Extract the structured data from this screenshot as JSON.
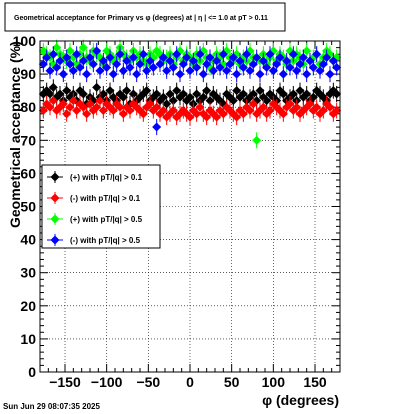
{
  "chart_data": {
    "type": "scatter",
    "title": "Geometrical acceptance for Primary vs φ (degrees) at |  η  | <= 1.0 at pT > 0.11",
    "xlabel": "φ (degrees)",
    "ylabel": "Geometrical acceptance (%)",
    "xlim": [
      -180,
      180
    ],
    "ylim": [
      0,
      100
    ],
    "x_ticks": [
      -150,
      -100,
      -50,
      0,
      50,
      100,
      150
    ],
    "x_tick_labels": [
      "−150",
      "−100",
      "−50",
      "0",
      "50",
      "100",
      "150"
    ],
    "y_ticks": [
      0,
      10,
      20,
      30,
      40,
      50,
      60,
      70,
      80,
      90,
      100
    ],
    "y_tick_labels": [
      "0",
      "10",
      "20",
      "30",
      "40",
      "50",
      "60",
      "70",
      "80",
      "90",
      "100"
    ],
    "grid": true,
    "legend_position": "left-middle",
    "x": [
      -176,
      -172,
      -168,
      -164,
      -160,
      -156,
      -152,
      -148,
      -144,
      -140,
      -136,
      -132,
      -128,
      -124,
      -120,
      -116,
      -112,
      -108,
      -104,
      -100,
      -96,
      -92,
      -88,
      -84,
      -80,
      -76,
      -72,
      -68,
      -64,
      -60,
      -56,
      -52,
      -48,
      -44,
      -40,
      -36,
      -32,
      -28,
      -24,
      -20,
      -16,
      -12,
      -8,
      -4,
      0,
      4,
      8,
      12,
      16,
      20,
      24,
      28,
      32,
      36,
      40,
      44,
      48,
      52,
      56,
      60,
      64,
      68,
      72,
      76,
      80,
      84,
      88,
      92,
      96,
      100,
      104,
      108,
      112,
      116,
      120,
      124,
      128,
      132,
      136,
      140,
      144,
      148,
      152,
      156,
      160,
      164,
      168,
      172,
      176
    ],
    "series": [
      {
        "name": "(+) with pT/|q| > 0.1",
        "color": "#000000",
        "values": [
          84,
          85,
          84,
          86,
          83,
          84,
          82,
          85,
          83,
          84,
          82,
          85,
          84,
          81,
          83,
          82,
          86,
          83,
          84,
          82,
          85,
          83,
          82,
          84,
          83,
          85,
          81,
          84,
          82,
          83,
          84,
          85,
          82,
          83,
          84,
          82,
          83,
          81,
          84,
          82,
          85,
          83,
          84,
          82,
          83,
          81,
          84,
          82,
          83,
          85,
          82,
          84,
          83,
          82,
          81,
          84,
          83,
          82,
          85,
          83,
          84,
          82,
          83,
          84,
          82,
          85,
          83,
          82,
          84,
          83,
          82,
          85,
          84,
          82,
          83,
          84,
          82,
          85,
          83,
          84,
          82,
          83,
          85,
          84,
          83,
          82,
          84,
          85,
          84
        ]
      },
      {
        "name": "(-) with pT/|q| > 0.1",
        "color": "#ff0000",
        "values": [
          79,
          81,
          80,
          82,
          79,
          80,
          81,
          78,
          80,
          82,
          79,
          81,
          80,
          78,
          81,
          79,
          80,
          82,
          79,
          81,
          80,
          79,
          81,
          80,
          78,
          80,
          79,
          81,
          80,
          79,
          78,
          80,
          81,
          79,
          80,
          78,
          79,
          77,
          78,
          79,
          77,
          78,
          79,
          78,
          77,
          79,
          78,
          80,
          78,
          77,
          79,
          78,
          77,
          79,
          78,
          80,
          79,
          78,
          77,
          79,
          78,
          80,
          79,
          81,
          78,
          79,
          80,
          78,
          79,
          81,
          80,
          79,
          78,
          80,
          81,
          79,
          80,
          78,
          79,
          80,
          81,
          79,
          80,
          78,
          79,
          81,
          80,
          78,
          79
        ]
      },
      {
        "name": "(+) with pT/|q| > 0.5",
        "color": "#00ff00",
        "values": [
          97,
          96,
          95,
          93,
          98,
          96,
          95,
          94,
          97,
          95,
          93,
          96,
          98,
          95,
          94,
          97,
          96,
          95,
          93,
          97,
          96,
          94,
          95,
          98,
          96,
          95,
          94,
          97,
          95,
          96,
          94,
          93,
          96,
          95,
          97,
          96,
          94,
          95,
          96,
          93,
          95,
          97,
          94,
          96,
          95,
          93,
          96,
          94,
          97,
          95,
          92,
          94,
          96,
          95,
          93,
          97,
          95,
          94,
          96,
          93,
          95,
          94,
          97,
          95,
          70,
          94,
          96,
          93,
          95,
          97,
          94,
          96,
          95,
          93,
          97,
          94,
          96,
          95,
          93,
          97,
          94,
          95,
          96,
          93,
          95,
          97,
          96,
          94,
          95
        ]
      },
      {
        "name": "(-) with pT/|q| > 0.5",
        "color": "#0000ff",
        "values": [
          93,
          95,
          91,
          96,
          92,
          94,
          90,
          95,
          93,
          91,
          96,
          92,
          94,
          90,
          95,
          93,
          97,
          91,
          94,
          92,
          95,
          90,
          93,
          96,
          91,
          94,
          92,
          95,
          90,
          93,
          96,
          91,
          94,
          92,
          74,
          93,
          95,
          91,
          94,
          92,
          96,
          90,
          93,
          95,
          91,
          94,
          92,
          96,
          90,
          93,
          95,
          91,
          94,
          92,
          96,
          91,
          93,
          95,
          90,
          94,
          92,
          96,
          91,
          93,
          95,
          90,
          94,
          92,
          96,
          91,
          93,
          95,
          90,
          94,
          92,
          96,
          91,
          93,
          95,
          90,
          94,
          92,
          96,
          91,
          93,
          95,
          90,
          94,
          92
        ]
      }
    ]
  },
  "footer": {
    "timestamp": "Sun Jun 29 08:07:35 2025"
  }
}
